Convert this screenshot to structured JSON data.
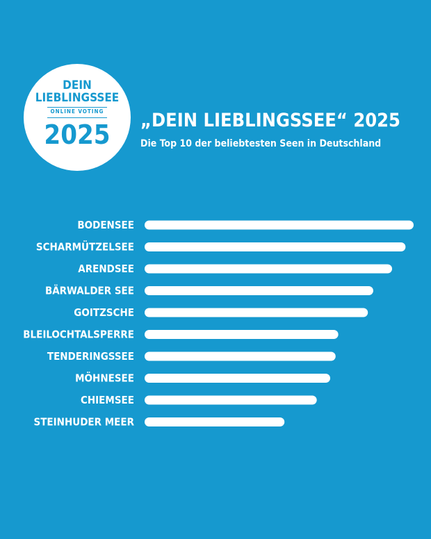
{
  "badge": {
    "line1": "DEIN",
    "line2": "LIEBLINGSSEE",
    "line3": "ONLINE VOTING",
    "year": "2025"
  },
  "colors": {
    "background": "#1699cf",
    "bar": "#ffffff",
    "text": "#ffffff"
  },
  "chart_data": {
    "type": "bar",
    "orientation": "horizontal",
    "title": "„DEIN LIEBLINGSSEE“ 2025",
    "subtitle": "Die Top 10 der beliebtesten Seen in Deutschland",
    "categories": [
      "BODENSEE",
      "SCHARMÜTZELSEE",
      "ARENDSEE",
      "BÄRWALDER SEE",
      "GOITZSCHE",
      "BLEILOCHTALSPERRE",
      "TENDERINGSSEE",
      "MÖHNESEE",
      "CHIEMSEE",
      "STEINHUDER MEER"
    ],
    "values": [
      100,
      97,
      92,
      85,
      83,
      72,
      71,
      69,
      64,
      52
    ],
    "xlim": [
      0,
      100
    ],
    "grid": false,
    "axes_visible": false
  }
}
